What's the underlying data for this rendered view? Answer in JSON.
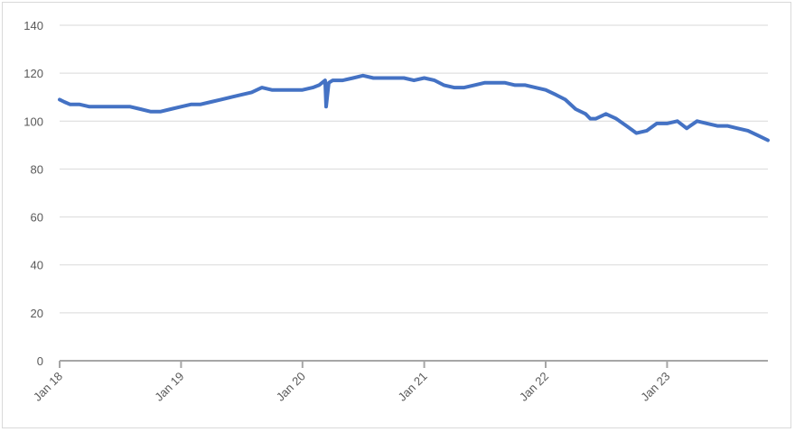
{
  "chart_data": {
    "type": "line",
    "title": "",
    "xlabel": "",
    "ylabel": "",
    "x_tick_labels": [
      "Jan 18",
      "Jan 19",
      "Jan 20",
      "Jan 21",
      "Jan 22",
      "Jan 23"
    ],
    "y_tick_labels": [
      "0",
      "20",
      "40",
      "60",
      "80",
      "100",
      "120",
      "140"
    ],
    "ylim": [
      0,
      140
    ],
    "xlim": [
      "2018-01-01",
      "2023-10-31"
    ],
    "grid": true,
    "legend": "none",
    "colors": {
      "series": "#4472c4",
      "grid": "#d9d9d9",
      "axis": "#a6a6a6",
      "text": "#595959"
    },
    "series": [
      {
        "x": [
          "2018-01-01",
          "2018-01-15",
          "2018-02-01",
          "2018-03-01",
          "2018-04-01",
          "2018-05-01",
          "2018-06-01",
          "2018-07-01",
          "2018-08-01",
          "2018-09-01",
          "2018-10-01",
          "2018-11-01",
          "2018-12-01",
          "2019-01-01",
          "2019-02-01",
          "2019-03-01",
          "2019-04-01",
          "2019-05-01",
          "2019-06-01",
          "2019-07-01",
          "2019-08-01",
          "2019-09-01",
          "2019-10-01",
          "2019-11-01",
          "2019-12-01",
          "2020-01-01",
          "2020-02-01",
          "2020-02-20",
          "2020-03-09",
          "2020-03-12",
          "2020-03-20",
          "2020-04-01",
          "2020-05-01",
          "2020-06-01",
          "2020-07-01",
          "2020-08-01",
          "2020-09-01",
          "2020-10-01",
          "2020-11-01",
          "2020-12-01",
          "2021-01-01",
          "2021-02-01",
          "2021-03-01",
          "2021-04-01",
          "2021-05-01",
          "2021-06-01",
          "2021-07-01",
          "2021-08-01",
          "2021-09-01",
          "2021-10-01",
          "2021-11-01",
          "2021-12-01",
          "2022-01-01",
          "2022-02-01",
          "2022-03-01",
          "2022-04-01",
          "2022-05-01",
          "2022-05-15",
          "2022-06-01",
          "2022-07-01",
          "2022-08-01",
          "2022-09-01",
          "2022-10-01",
          "2022-11-01",
          "2022-12-01",
          "2023-01-01",
          "2023-02-01",
          "2023-03-01",
          "2023-04-01",
          "2023-05-01",
          "2023-06-01",
          "2023-07-01",
          "2023-08-01",
          "2023-09-01",
          "2023-10-01",
          "2023-10-31"
        ],
        "y": [
          109,
          108,
          107,
          107,
          106,
          106,
          106,
          106,
          106,
          105,
          104,
          104,
          105,
          106,
          107,
          107,
          108,
          109,
          110,
          111,
          112,
          114,
          113,
          113,
          113,
          113,
          114,
          115,
          117,
          106,
          116,
          117,
          117,
          118,
          119,
          118,
          118,
          118,
          118,
          117,
          118,
          117,
          115,
          114,
          114,
          115,
          116,
          116,
          116,
          115,
          115,
          114,
          113,
          111,
          109,
          105,
          103,
          101,
          101,
          103,
          101,
          98,
          95,
          96,
          99,
          99,
          100,
          97,
          100,
          99,
          98,
          98,
          97,
          96,
          94,
          92
        ]
      }
    ]
  }
}
